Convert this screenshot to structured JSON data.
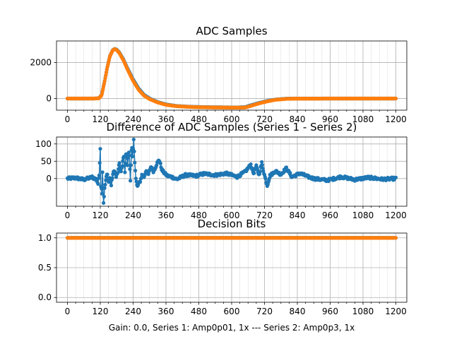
{
  "colors": {
    "series1": "#1f77b4",
    "series2": "#ff7f0e"
  },
  "chart_data": [
    {
      "type": "line",
      "title": "ADC Samples",
      "xlabel": "",
      "ylabel": "",
      "xlim": [
        -40,
        1240
      ],
      "ylim": [
        -650,
        3200
      ],
      "xticks": [
        0,
        120,
        240,
        360,
        480,
        600,
        720,
        840,
        960,
        1080,
        1200
      ],
      "xtick_labels": [
        "0",
        "120",
        "240",
        "360",
        "480",
        "600",
        "720",
        "840",
        "960",
        "1080",
        "1200"
      ],
      "xminor_step": 30,
      "yticks": [
        0,
        2000
      ],
      "ytick_labels": [
        "0",
        "2000"
      ],
      "grid": true,
      "series": [
        {
          "name": "Series 1",
          "color": "#1f77b4",
          "marker": "circle",
          "points": [
            [
              0,
              0
            ],
            [
              100,
              0
            ],
            [
              115,
              20
            ],
            [
              125,
              200
            ],
            [
              135,
              900
            ],
            [
              145,
              1700
            ],
            [
              155,
              2350
            ],
            [
              165,
              2680
            ],
            [
              172,
              2760
            ],
            [
              180,
              2720
            ],
            [
              190,
              2550
            ],
            [
              205,
              2150
            ],
            [
              220,
              1650
            ],
            [
              240,
              1050
            ],
            [
              260,
              550
            ],
            [
              280,
              200
            ],
            [
              300,
              0
            ],
            [
              330,
              -200
            ],
            [
              360,
              -330
            ],
            [
              400,
              -420
            ],
            [
              450,
              -460
            ],
            [
              500,
              -480
            ],
            [
              560,
              -490
            ],
            [
              620,
              -500
            ],
            [
              650,
              -480
            ],
            [
              670,
              -380
            ],
            [
              700,
              -250
            ],
            [
              730,
              -140
            ],
            [
              760,
              -60
            ],
            [
              800,
              -10
            ],
            [
              840,
              0
            ],
            [
              1200,
              0
            ]
          ]
        },
        {
          "name": "Series 2",
          "color": "#ff7f0e",
          "marker": "circle",
          "points": [
            [
              0,
              0
            ],
            [
              100,
              0
            ],
            [
              115,
              15
            ],
            [
              125,
              180
            ],
            [
              135,
              880
            ],
            [
              145,
              1690
            ],
            [
              155,
              2340
            ],
            [
              165,
              2670
            ],
            [
              172,
              2750
            ],
            [
              180,
              2700
            ],
            [
              190,
              2520
            ],
            [
              205,
              2110
            ],
            [
              220,
              1600
            ],
            [
              240,
              980
            ],
            [
              260,
              490
            ],
            [
              280,
              160
            ],
            [
              300,
              -30
            ],
            [
              330,
              -220
            ],
            [
              360,
              -350
            ],
            [
              400,
              -430
            ],
            [
              450,
              -470
            ],
            [
              500,
              -490
            ],
            [
              560,
              -500
            ],
            [
              620,
              -510
            ],
            [
              650,
              -500
            ],
            [
              670,
              -410
            ],
            [
              700,
              -270
            ],
            [
              730,
              -160
            ],
            [
              760,
              -70
            ],
            [
              800,
              -20
            ],
            [
              840,
              -5
            ],
            [
              1200,
              0
            ]
          ]
        }
      ]
    },
    {
      "type": "line",
      "title": "Difference of ADC Samples (Series 1 - Series 2)",
      "xlabel": "",
      "ylabel": "",
      "xlim": [
        -40,
        1240
      ],
      "ylim": [
        -80,
        120
      ],
      "xticks": [
        0,
        120,
        240,
        360,
        480,
        600,
        720,
        840,
        960,
        1080,
        1200
      ],
      "xtick_labels": [
        "0",
        "120",
        "240",
        "360",
        "480",
        "600",
        "720",
        "840",
        "960",
        "1080",
        "1200"
      ],
      "xminor_step": 30,
      "yticks": [
        0,
        50,
        100
      ],
      "ytick_labels": [
        "0",
        "50",
        "100"
      ],
      "grid": true,
      "series": [
        {
          "name": "Series 1 - Series 2",
          "color": "#1f77b4",
          "marker": "circle",
          "points": [
            [
              0,
              0
            ],
            [
              30,
              2
            ],
            [
              60,
              -3
            ],
            [
              90,
              4
            ],
            [
              105,
              -2
            ],
            [
              112,
              -15
            ],
            [
              116,
              10
            ],
            [
              120,
              88
            ],
            [
              122,
              -20
            ],
            [
              126,
              -40
            ],
            [
              128,
              20
            ],
            [
              132,
              -70
            ],
            [
              136,
              -30
            ],
            [
              140,
              -5
            ],
            [
              145,
              15
            ],
            [
              150,
              -10
            ],
            [
              155,
              5
            ],
            [
              160,
              -20
            ],
            [
              165,
              10
            ],
            [
              172,
              25
            ],
            [
              178,
              5
            ],
            [
              185,
              20
            ],
            [
              190,
              45
            ],
            [
              195,
              15
            ],
            [
              200,
              35
            ],
            [
              205,
              70
            ],
            [
              210,
              20
            ],
            [
              215,
              80
            ],
            [
              220,
              40
            ],
            [
              225,
              85
            ],
            [
              230,
              -5
            ],
            [
              235,
              100
            ],
            [
              238,
              60
            ],
            [
              242,
              110
            ],
            [
              246,
              50
            ],
            [
              250,
              0
            ],
            [
              255,
              -25
            ],
            [
              260,
              -15
            ],
            [
              265,
              -10
            ],
            [
              272,
              10
            ],
            [
              280,
              5
            ],
            [
              288,
              25
            ],
            [
              295,
              10
            ],
            [
              305,
              35
            ],
            [
              315,
              20
            ],
            [
              325,
              40
            ],
            [
              335,
              55
            ],
            [
              345,
              25
            ],
            [
              355,
              15
            ],
            [
              365,
              8
            ],
            [
              380,
              5
            ],
            [
              400,
              -2
            ],
            [
              430,
              10
            ],
            [
              470,
              8
            ],
            [
              500,
              14
            ],
            [
              540,
              10
            ],
            [
              580,
              15
            ],
            [
              620,
              5
            ],
            [
              650,
              20
            ],
            [
              670,
              40
            ],
            [
              680,
              15
            ],
            [
              690,
              35
            ],
            [
              700,
              10
            ],
            [
              710,
              45
            ],
            [
              720,
              10
            ],
            [
              730,
              -20
            ],
            [
              740,
              8
            ],
            [
              760,
              22
            ],
            [
              780,
              12
            ],
            [
              800,
              30
            ],
            [
              820,
              5
            ],
            [
              850,
              15
            ],
            [
              880,
              5
            ],
            [
              900,
              0
            ],
            [
              950,
              -5
            ],
            [
              1000,
              5
            ],
            [
              1050,
              -3
            ],
            [
              1100,
              3
            ],
            [
              1150,
              -2
            ],
            [
              1200,
              0
            ]
          ]
        }
      ]
    },
    {
      "type": "line",
      "title": "Decision Bits",
      "xlabel": "Gain: 0.0, Series 1: Amp0p01, 1x --- Series 2: Amp0p3, 1x",
      "ylabel": "",
      "xlim": [
        -40,
        1240
      ],
      "ylim": [
        -0.08,
        1.08
      ],
      "xticks": [
        0,
        120,
        240,
        360,
        480,
        600,
        720,
        840,
        960,
        1080,
        1200
      ],
      "xtick_labels": [
        "0",
        "120",
        "240",
        "360",
        "480",
        "600",
        "720",
        "840",
        "960",
        "1080",
        "1200"
      ],
      "xminor_step": 30,
      "yticks": [
        0.0,
        0.5,
        1.0
      ],
      "ytick_labels": [
        "0.0",
        "0.5",
        "1.0"
      ],
      "grid": true,
      "series": [
        {
          "name": "Series 1",
          "color": "#1f77b4",
          "marker": "circle",
          "points": [
            [
              0,
              1
            ],
            [
              1200,
              1
            ]
          ]
        },
        {
          "name": "Series 2",
          "color": "#ff7f0e",
          "marker": "circle",
          "points": [
            [
              0,
              1
            ],
            [
              1200,
              1
            ]
          ]
        }
      ]
    }
  ]
}
